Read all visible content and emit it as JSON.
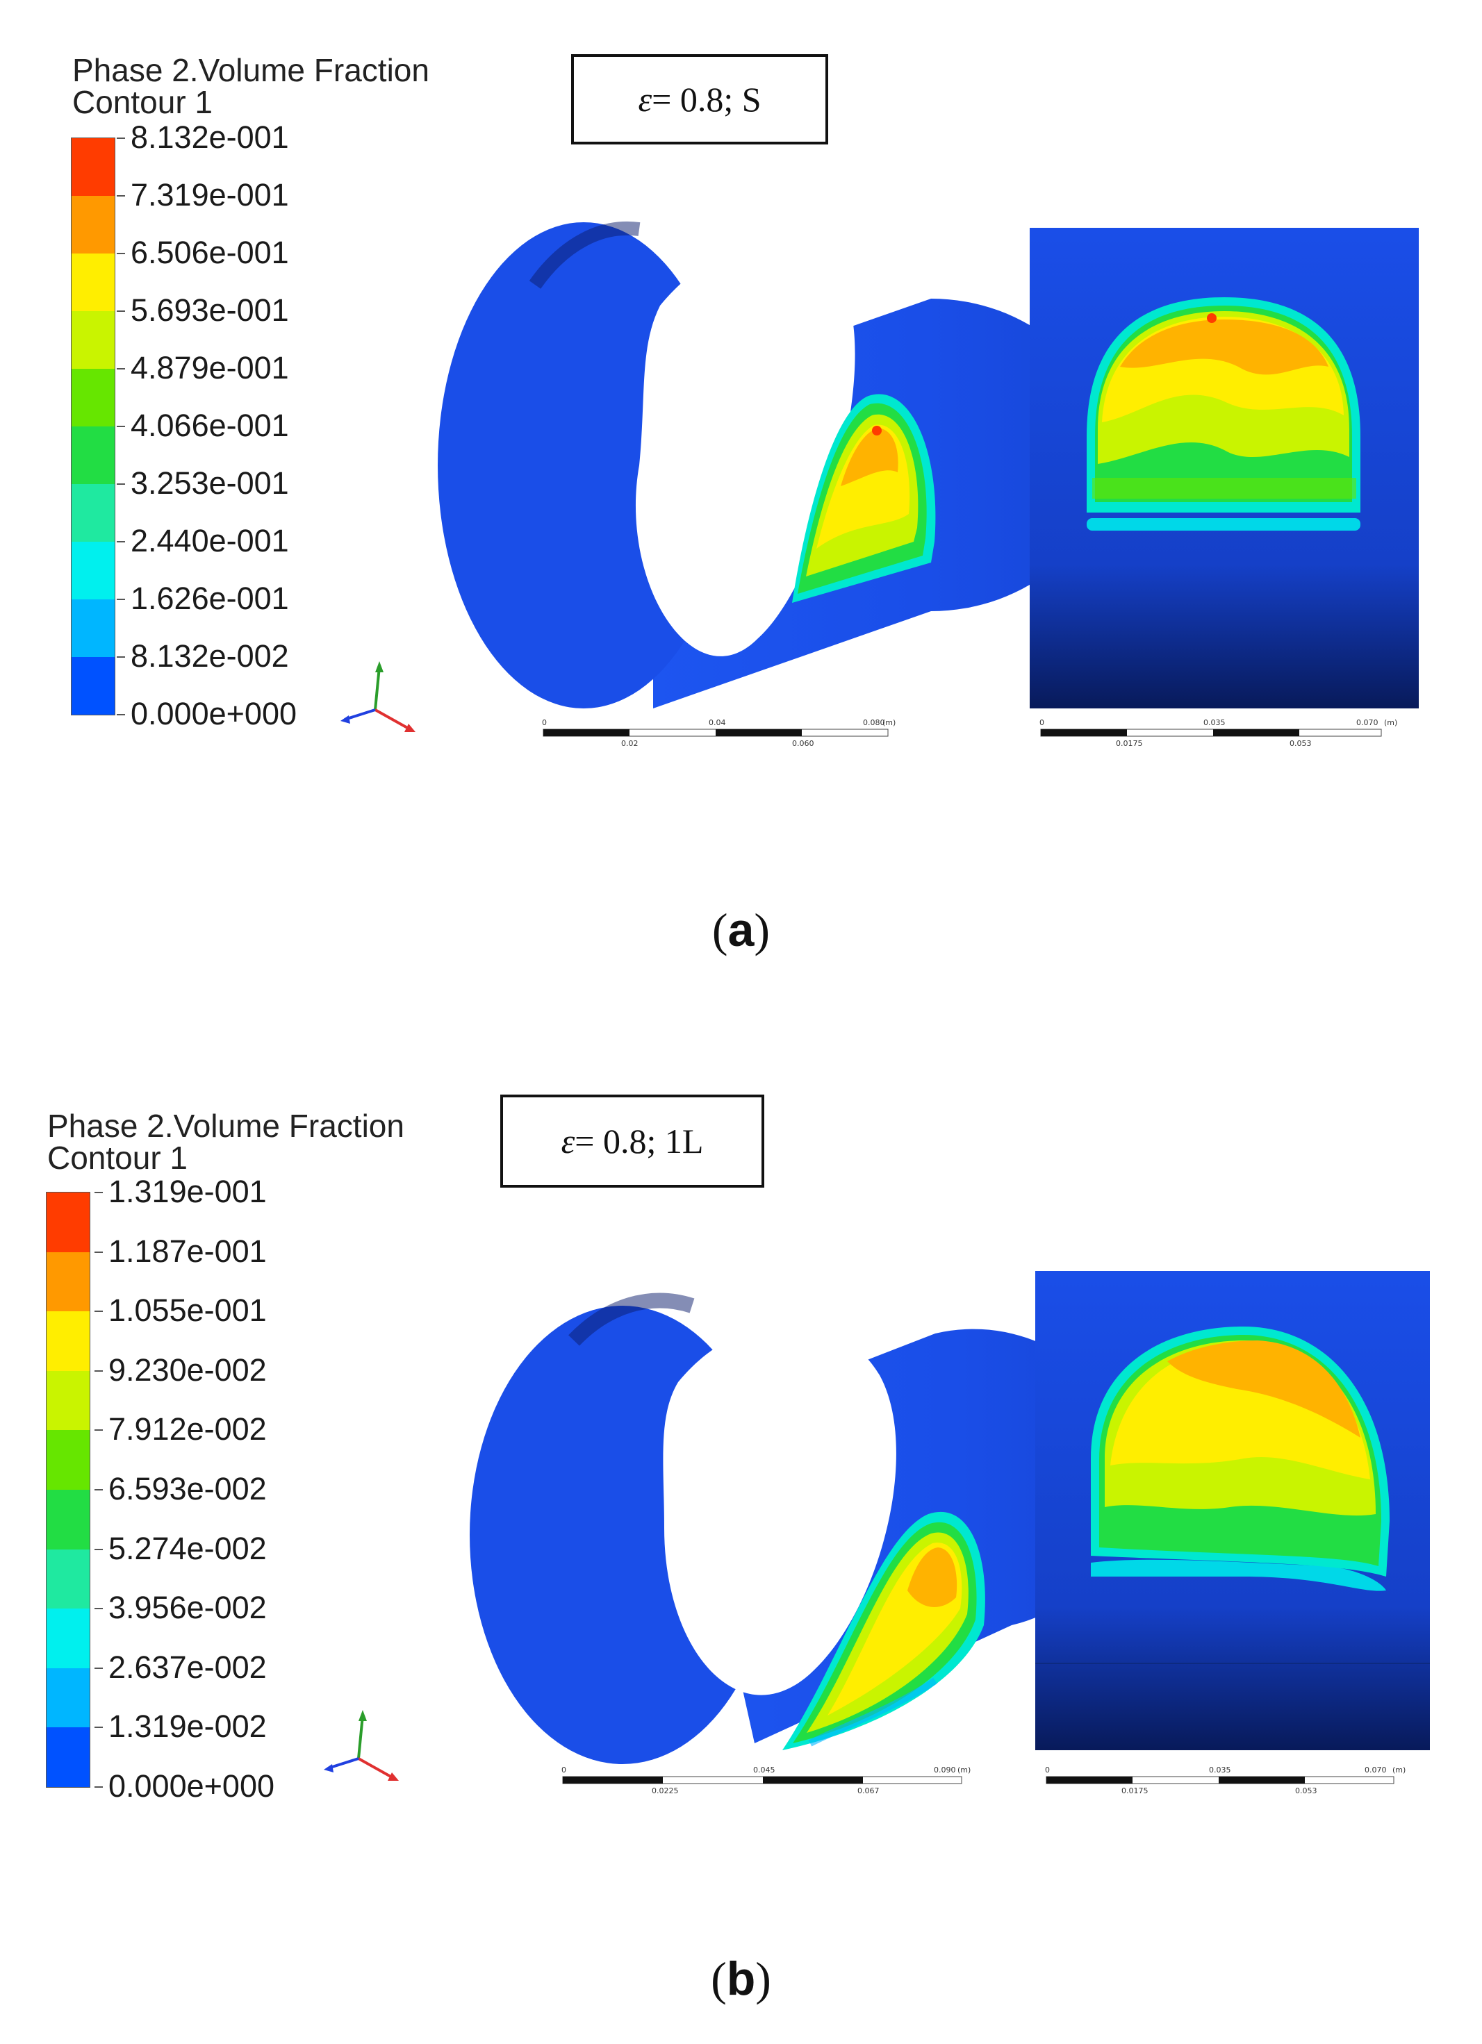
{
  "panels": [
    {
      "id": "a",
      "legend_title_line1": "Phase 2.Volume Fraction",
      "legend_title_line2": "Contour 1",
      "colorbar_labels": [
        "8.132e-001",
        "7.319e-001",
        "6.506e-001",
        "5.693e-001",
        "4.879e-001",
        "4.066e-001",
        "3.253e-001",
        "2.440e-001",
        "1.626e-001",
        "8.132e-002",
        "0.000e+000"
      ],
      "case_eps": "ε",
      "case_rest": " = 0.8; S",
      "scale1_top": [
        "0",
        "0.04",
        "0.080",
        "(m)"
      ],
      "scale1_bottom": [
        "0.02",
        "0.060"
      ],
      "scale2_top": [
        "0",
        "0.035",
        "0.070",
        "(m)"
      ],
      "scale2_bottom": [
        "0.0175",
        "0.053"
      ],
      "caption": "a"
    },
    {
      "id": "b",
      "legend_title_line1": "Phase 2.Volume Fraction",
      "legend_title_line2": "Contour 1",
      "colorbar_labels": [
        "1.319e-001",
        "1.187e-001",
        "1.055e-001",
        "9.230e-002",
        "7.912e-002",
        "6.593e-002",
        "5.274e-002",
        "3.956e-002",
        "2.637e-002",
        "1.319e-002",
        "0.000e+000"
      ],
      "case_eps": "ε",
      "case_rest": " = 0.8; 1L",
      "scale1_top": [
        "0",
        "0.045",
        "0.090",
        "(m)"
      ],
      "scale1_bottom": [
        "0.0225",
        "0.067"
      ],
      "scale2_top": [
        "0",
        "0.035",
        "0.070",
        "(m)"
      ],
      "scale2_bottom": [
        "0.0175",
        "0.053"
      ],
      "caption": "b"
    }
  ],
  "colors": {
    "cb": [
      "#ff3c00",
      "#ff9900",
      "#ffee00",
      "#c9f400",
      "#66e600",
      "#22dd44",
      "#1fe9a0",
      "#00f0ee",
      "#00b6ff",
      "#0052ff"
    ],
    "pipe": "#1a4ee8",
    "pipe_dark": "#0a1c6b"
  }
}
